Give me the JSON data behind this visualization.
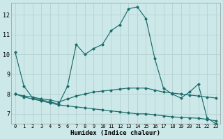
{
  "xlabel": "Humidex (Indice chaleur)",
  "bg_color": "#cde8e8",
  "grid_color": "#b8d4d4",
  "line_color": "#1a6b6b",
  "xlim": [
    -0.5,
    23.5
  ],
  "ylim": [
    6.5,
    12.6
  ],
  "xticks": [
    0,
    1,
    2,
    3,
    4,
    5,
    6,
    7,
    8,
    9,
    10,
    11,
    12,
    13,
    14,
    15,
    16,
    17,
    18,
    19,
    20,
    21,
    22,
    23
  ],
  "yticks": [
    7,
    8,
    9,
    10,
    11,
    12
  ],
  "series": [
    {
      "x": [
        0,
        1,
        2,
        3,
        4,
        5,
        6,
        7,
        8,
        9,
        10,
        11,
        12,
        13,
        14,
        15,
        16,
        17,
        18,
        19,
        20,
        21,
        22,
        23
      ],
      "y": [
        10.1,
        8.4,
        null,
        null,
        null,
        null,
        null,
        null,
        null,
        null,
        null,
        null,
        null,
        null,
        null,
        null,
        null,
        null,
        null,
        null,
        null,
        null,
        null,
        null
      ]
    },
    {
      "x": [
        0,
        1,
        2,
        3,
        4,
        5,
        6,
        7,
        8,
        9,
        10,
        11,
        12,
        13,
        14,
        15,
        16,
        17,
        18,
        19,
        20,
        21,
        22,
        23
      ],
      "y": [
        10.1,
        8.4,
        7.8,
        7.7,
        7.6,
        7.5,
        8.4,
        10.5,
        10.0,
        10.3,
        10.5,
        11.2,
        11.5,
        12.3,
        12.4,
        11.8,
        9.8,
        8.3,
        8.0,
        7.8,
        8.1,
        8.5,
        6.8,
        6.5
      ]
    },
    {
      "x": [
        0,
        1,
        2,
        3,
        4,
        5,
        6,
        7,
        8,
        9,
        10,
        11,
        12,
        13,
        14,
        15,
        16,
        17,
        18,
        19,
        20,
        21,
        22,
        23
      ],
      "y": [
        8.0,
        7.9,
        7.85,
        7.75,
        7.7,
        7.6,
        7.75,
        7.9,
        8.0,
        8.1,
        8.15,
        8.2,
        8.25,
        8.3,
        8.3,
        8.3,
        8.2,
        8.1,
        8.05,
        8.0,
        7.95,
        7.9,
        7.85,
        7.8
      ]
    },
    {
      "x": [
        0,
        1,
        2,
        3,
        4,
        5,
        6,
        7,
        8,
        9,
        10,
        11,
        12,
        13,
        14,
        15,
        16,
        17,
        18,
        19,
        20,
        21,
        22,
        23
      ],
      "y": [
        8.0,
        7.85,
        7.75,
        7.65,
        7.55,
        7.45,
        7.4,
        7.35,
        7.3,
        7.25,
        7.2,
        7.15,
        7.1,
        7.05,
        7.0,
        7.0,
        6.95,
        6.9,
        6.85,
        6.82,
        6.8,
        6.78,
        6.72,
        6.65
      ]
    }
  ]
}
